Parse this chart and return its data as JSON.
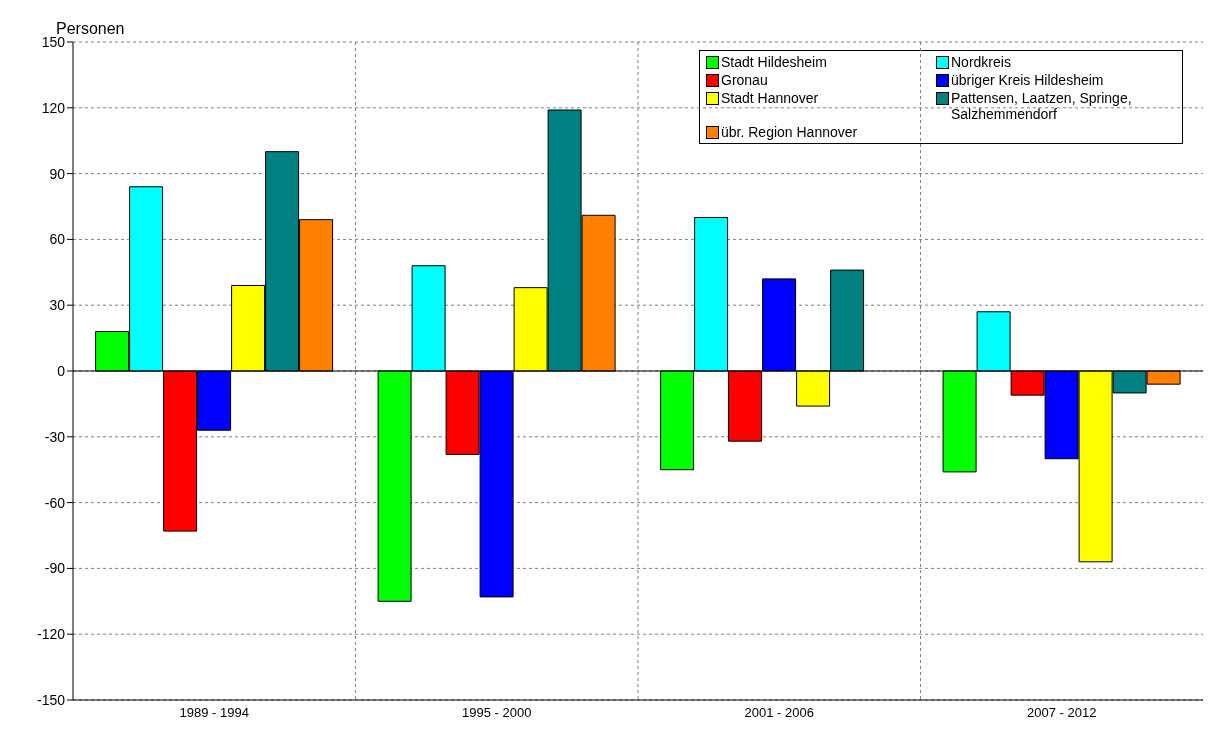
{
  "chart_data": {
    "type": "bar",
    "ylabel": "Personen",
    "categories": [
      "1989 - 1994",
      "1995 - 2000",
      "2001 - 2006",
      "2007 - 2012"
    ],
    "series": [
      {
        "name": "Stadt Hildesheim",
        "color": "#00ff00",
        "values": [
          18,
          -105,
          -45,
          -46
        ]
      },
      {
        "name": "Nordkreis",
        "color": "#00ffff",
        "values": [
          84,
          48,
          70,
          27
        ]
      },
      {
        "name": "Gronau",
        "color": "#ff0000",
        "values": [
          -73,
          -38,
          -32,
          -11
        ]
      },
      {
        "name": "übriger Kreis Hildesheim",
        "color": "#0000ff",
        "values": [
          -27,
          -103,
          42,
          -40
        ]
      },
      {
        "name": "Stadt Hannover",
        "color": "#ffff00",
        "values": [
          39,
          38,
          -16,
          -87
        ]
      },
      {
        "name": "Pattensen, Laatzen, Springe, Salzhemmendorf",
        "color": "#008080",
        "values": [
          100,
          119,
          46,
          -10
        ]
      },
      {
        "name": "übr. Region Hannover",
        "color": "#ff8000",
        "values": [
          69,
          71,
          0,
          -6
        ]
      }
    ],
    "ylim": [
      -150,
      150
    ],
    "yticks": [
      -150,
      -120,
      -90,
      -60,
      -30,
      0,
      30,
      60,
      90,
      120,
      150
    ],
    "grid": true,
    "legend": "top right"
  }
}
